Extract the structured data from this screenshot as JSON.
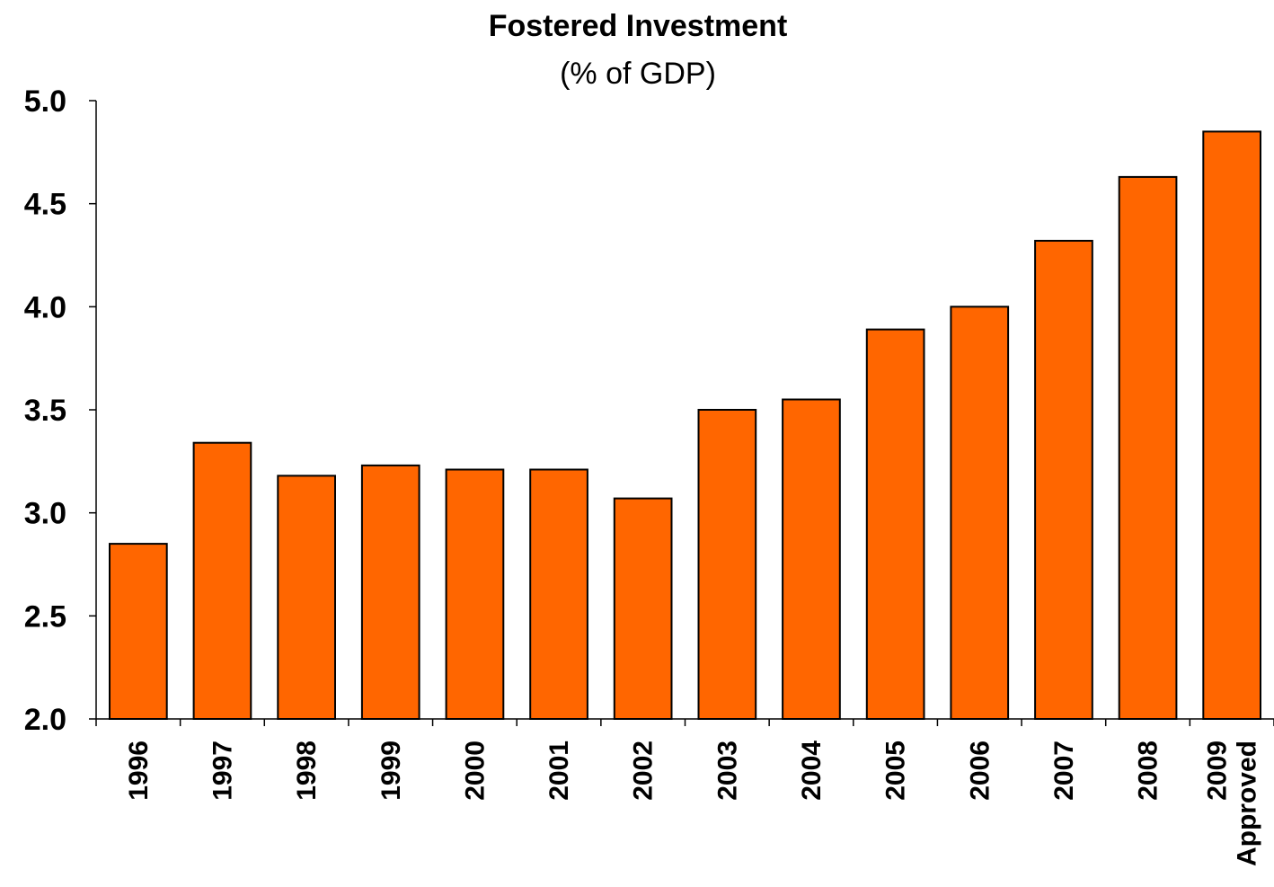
{
  "chart_data": {
    "type": "bar",
    "title": "Fostered Investment",
    "subtitle": "(% of GDP)",
    "xlabel": "",
    "ylabel": "",
    "categories": [
      [
        "1996"
      ],
      [
        "1997"
      ],
      [
        "1998"
      ],
      [
        "1999"
      ],
      [
        "2000"
      ],
      [
        "2001"
      ],
      [
        "2002"
      ],
      [
        "2003"
      ],
      [
        "2004"
      ],
      [
        "2005"
      ],
      [
        "2006"
      ],
      [
        "2007"
      ],
      [
        "2008"
      ],
      [
        "2009",
        "Approved"
      ]
    ],
    "values": [
      2.85,
      3.34,
      3.18,
      3.23,
      3.21,
      3.21,
      3.07,
      3.5,
      3.55,
      3.89,
      4.0,
      4.32,
      4.63,
      4.85
    ],
    "ylim": [
      2.0,
      5.0
    ],
    "yticks": [
      "2.0",
      "2.5",
      "3.0",
      "3.5",
      "4.0",
      "4.5",
      "5.0"
    ],
    "grid": false,
    "legend": "none",
    "bar_color": "#FF6600",
    "edge_color": "#000000"
  }
}
